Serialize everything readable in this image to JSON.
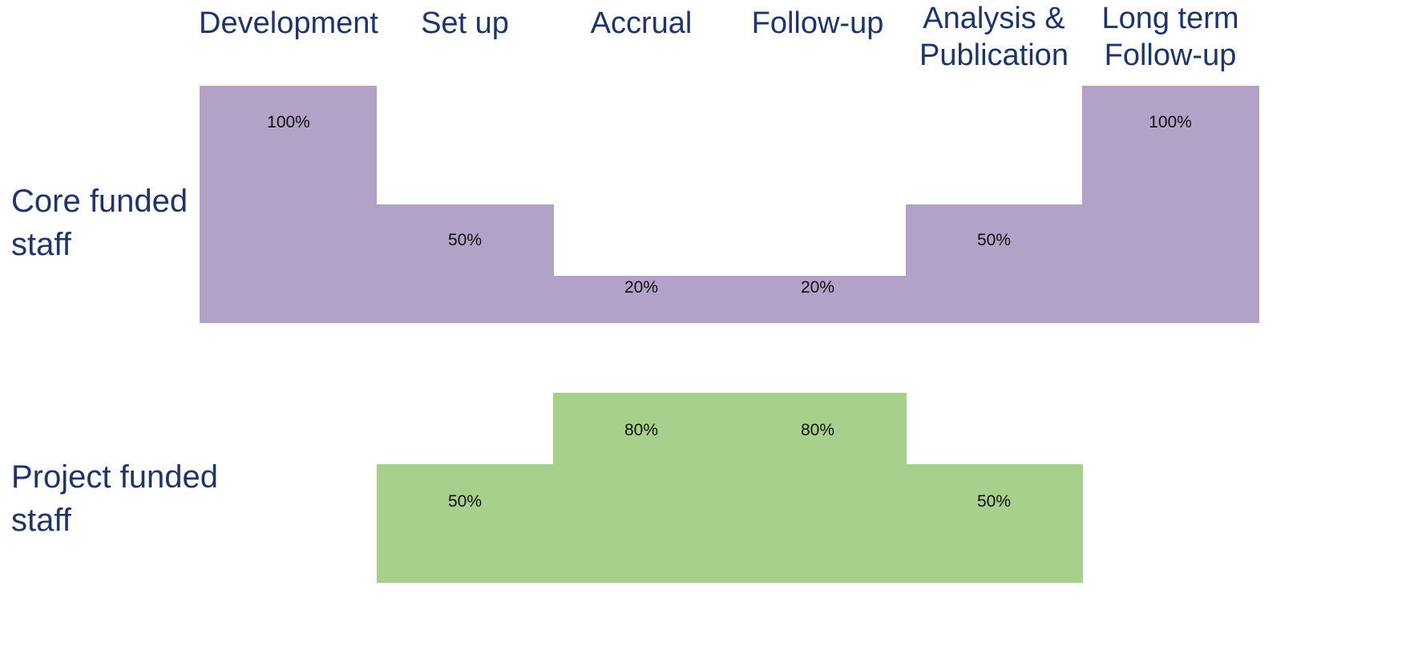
{
  "chart_data": {
    "type": "bar",
    "categories": [
      "Development",
      "Set up",
      "Accrual",
      "Follow-up",
      "Analysis &\nPublication",
      "Long term\nFollow-up"
    ],
    "series": [
      {
        "name": "Core funded\nstaff",
        "values": [
          100,
          50,
          20,
          20,
          50,
          100
        ],
        "labels": [
          "100%",
          "50%",
          "20%",
          "20%",
          "50%",
          "100%"
        ],
        "color": "#b2a2c7"
      },
      {
        "name": "Project funded\nstaff",
        "values": [
          0,
          50,
          80,
          80,
          50,
          0
        ],
        "labels": [
          "",
          "50%",
          "80%",
          "80%",
          "50%",
          ""
        ],
        "color": "#a8d08d"
      }
    ],
    "ylim": [
      0,
      100
    ]
  }
}
